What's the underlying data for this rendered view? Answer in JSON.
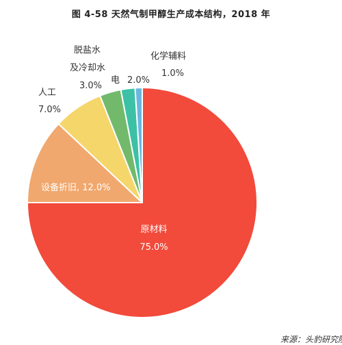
{
  "chart_data": {
    "type": "pie",
    "title": "图 4-58  天然气制甲醇生产成本结构，2018 年",
    "slices": [
      {
        "name": "原材料",
        "value": 75.0,
        "display": "75.0%",
        "color": "#f24a3b"
      },
      {
        "name": "设备折旧",
        "value": 12.0,
        "display": "设备折旧, 12.0%",
        "color": "#f0a86e"
      },
      {
        "name": "人工",
        "value": 7.0,
        "display": "7.0%",
        "color": "#f5d66b"
      },
      {
        "name": "脱盐水及冷却水",
        "name_lines": [
          "脱盐水",
          "及冷却水"
        ],
        "value": 3.0,
        "display": "3.0%",
        "color": "#72b96c"
      },
      {
        "name": "电",
        "value": 2.0,
        "display": "2.0%",
        "color": "#3cc1a6"
      },
      {
        "name": "化学辅料",
        "value": 1.0,
        "display": "1.0%",
        "color": "#69b7df"
      }
    ]
  },
  "source": "来源：头豹研究院"
}
